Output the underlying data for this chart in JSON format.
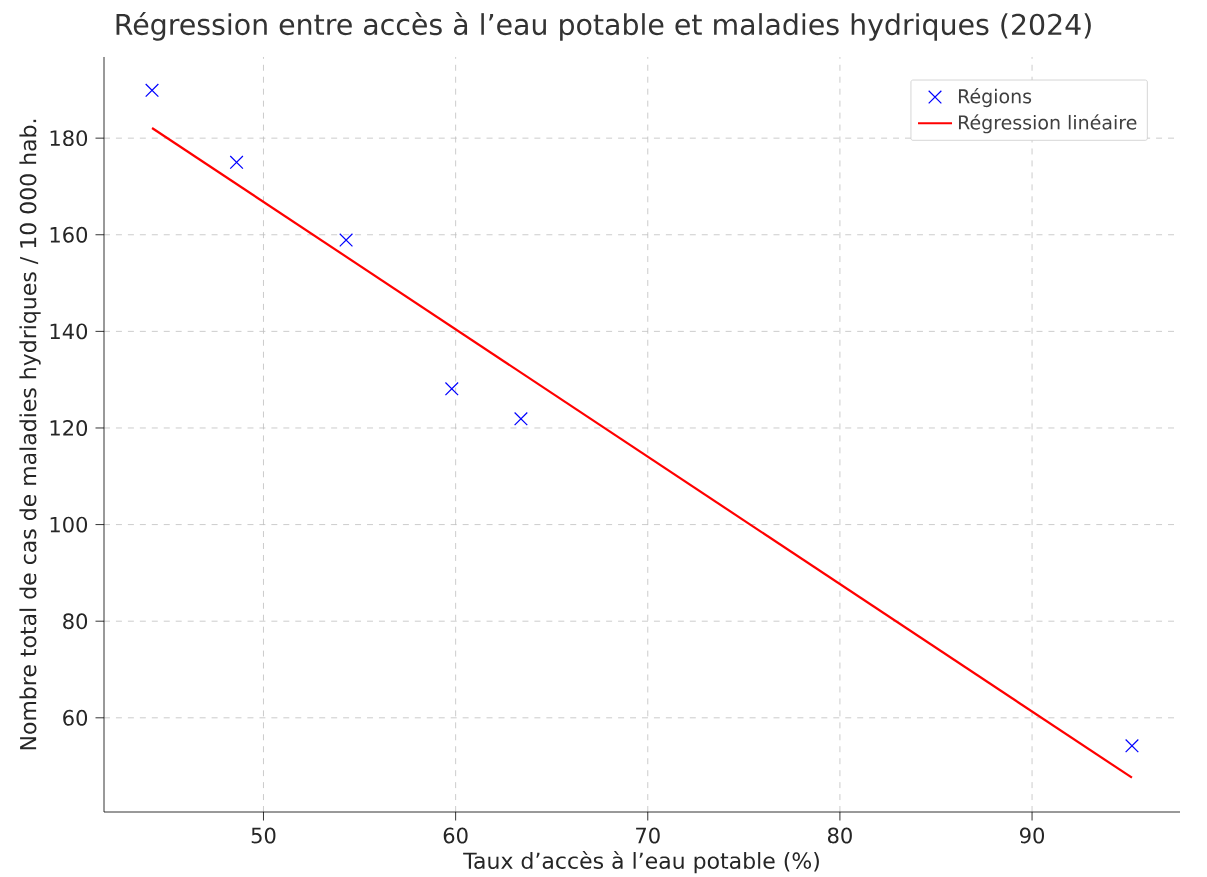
{
  "chart_data": {
    "type": "scatter",
    "title": "Régression entre accès à l’eau potable et maladies hydriques (2024)",
    "xlabel": "Taux d’accès à l’eau potable (%)",
    "ylabel": "Nombre total de cas de maladies hydriques / 10 000 hab.",
    "xlim": [
      41.7,
      97.7
    ],
    "ylim": [
      40.5,
      196.8
    ],
    "xticks": [
      50,
      60,
      70,
      80,
      90
    ],
    "yticks": [
      60,
      80,
      100,
      120,
      140,
      160,
      180
    ],
    "grid": true,
    "legend": "top right",
    "series": [
      {
        "name": "Régions",
        "marker": "cross",
        "color": "#0000ff",
        "x": [
          44.2,
          48.6,
          54.3,
          59.8,
          63.4,
          95.2
        ],
        "values": [
          189.9,
          175.0,
          158.9,
          128.1,
          121.9,
          54.2
        ]
      },
      {
        "name": "Régression linéaire",
        "type": "line",
        "marker": "none",
        "color": "#ff0000",
        "x": [
          44.2,
          95.2
        ],
        "values": [
          182.1,
          47.6
        ]
      }
    ]
  }
}
